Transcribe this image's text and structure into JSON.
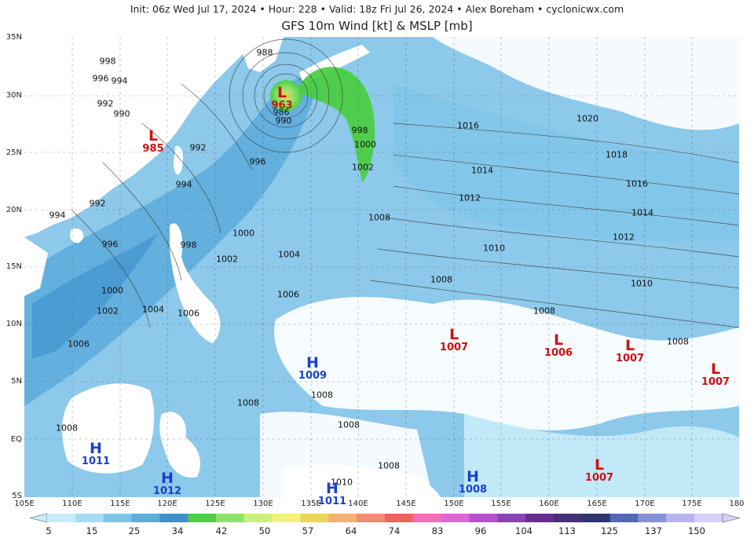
{
  "header": {
    "info_line": "Init: 06z Wed Jul 17, 2024 • Hour: 228 • Valid: 18z Fri Jul 26, 2024 • Alex Boreham • cyclonicwx.com",
    "title": "GFS 10m Wind [kt] & MSLP [mb]"
  },
  "map": {
    "lat_labels": [
      "35N",
      "30N",
      "25N",
      "20N",
      "15N",
      "10N",
      "5N",
      "EQ",
      "5S"
    ],
    "lon_labels": [
      "105E",
      "110E",
      "115E",
      "120E",
      "125E",
      "130E",
      "135E",
      "140E",
      "145E",
      "150E",
      "155E",
      "160E",
      "165E",
      "170E",
      "175E",
      "180"
    ],
    "pressure_systems": [
      {
        "type": "L",
        "value": "963"
      },
      {
        "type": "L",
        "value": "985"
      },
      {
        "type": "L",
        "value": "1007"
      },
      {
        "type": "L",
        "value": "1006"
      },
      {
        "type": "L",
        "value": "1007"
      },
      {
        "type": "L",
        "value": "1007"
      },
      {
        "type": "L",
        "value": "1007"
      },
      {
        "type": "H",
        "value": "1009"
      },
      {
        "type": "H",
        "value": "1011"
      },
      {
        "type": "H",
        "value": "1012"
      },
      {
        "type": "H",
        "value": "1011"
      },
      {
        "type": "H",
        "value": "1008"
      }
    ],
    "isobar_labels": [
      "998",
      "996",
      "994",
      "992",
      "990",
      "992",
      "994",
      "992",
      "994",
      "996",
      "998",
      "1000",
      "1002",
      "1004",
      "1006",
      "1000",
      "1002",
      "1004",
      "1006",
      "996",
      "998",
      "1000",
      "1002",
      "1008",
      "1016",
      "1020",
      "1018",
      "1016",
      "1014",
      "1014",
      "1012",
      "1012",
      "1010",
      "1010",
      "1008",
      "1008",
      "1008",
      "1008",
      "1006",
      "1008",
      "1008",
      "1008",
      "1010",
      "1008",
      "990",
      "986",
      "988"
    ],
    "land_color": "#ffffff",
    "sea_wind_color": "#8cc9ea",
    "storm_color": "#6ad35a"
  },
  "colorbar": {
    "labels": [
      "5",
      "15",
      "25",
      "34",
      "42",
      "50",
      "57",
      "64",
      "74",
      "83",
      "96",
      "104",
      "113",
      "125",
      "137",
      "150"
    ],
    "colors": [
      "#c8ecfa",
      "#a6dcf3",
      "#7ec5ea",
      "#5cacdc",
      "#3d8fcd",
      "#4ccf45",
      "#8fe36a",
      "#ccf07e",
      "#f4f080",
      "#e9d65a",
      "#f6b070",
      "#f38a72",
      "#ef6262",
      "#f06fb5",
      "#dd66d9",
      "#b94fd1",
      "#8c42b6",
      "#672e93",
      "#45307a",
      "#2e3570",
      "#5567b8",
      "#8791d8",
      "#b7b4ef",
      "#d7d0f8"
    ]
  }
}
